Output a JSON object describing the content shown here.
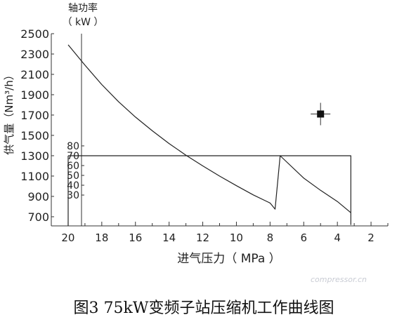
{
  "chart_data": {
    "type": "line",
    "xlabel": "进气压力（ MPa ）",
    "x_ticks": [
      20,
      18,
      16,
      14,
      12,
      10,
      8,
      6,
      4,
      2
    ],
    "xlim": [
      21,
      1
    ],
    "ylabel_left": "供气量（Nm³/h）",
    "y_ticks_left": [
      700,
      900,
      1100,
      1300,
      1500,
      1700,
      1900,
      2100,
      2300,
      2500
    ],
    "ylim_left": [
      610,
      2500
    ],
    "ylabel_right_line1": "轴功率",
    "ylabel_right_line2": "（ kW ）",
    "y_ticks_power": [
      30,
      40,
      50,
      60,
      70,
      80
    ],
    "series": [
      {
        "values": [
          [
            20.0,
            2390
          ],
          [
            19.0,
            2190
          ],
          [
            18.0,
            2000
          ],
          [
            17.0,
            1830
          ],
          [
            16.0,
            1680
          ],
          [
            15.0,
            1545
          ],
          [
            14.0,
            1420
          ],
          [
            13.0,
            1305
          ],
          [
            12.0,
            1200
          ],
          [
            11.0,
            1100
          ],
          [
            10.0,
            1005
          ],
          [
            9.0,
            915
          ],
          [
            8.0,
            835
          ],
          [
            7.7,
            775
          ],
          [
            7.4,
            1300
          ],
          [
            6.0,
            1080
          ],
          [
            5.0,
            960
          ],
          [
            4.0,
            850
          ],
          [
            3.2,
            740
          ]
        ]
      },
      {
        "values": [
          [
            20.0,
            1300
          ],
          [
            12.0,
            1300
          ],
          [
            7.4,
            1300
          ],
          [
            3.2,
            1300
          ],
          [
            3.2,
            620
          ]
        ]
      },
      {
        "values": [
          [
            20.0,
            610
          ],
          [
            20.0,
            1300
          ]
        ]
      }
    ],
    "marker": {
      "x": 5.0,
      "y": 1710,
      "color": "#111111"
    }
  },
  "caption": "图3  75kW变频子站压缩机工作曲线图",
  "watermark": "compressor.cn"
}
